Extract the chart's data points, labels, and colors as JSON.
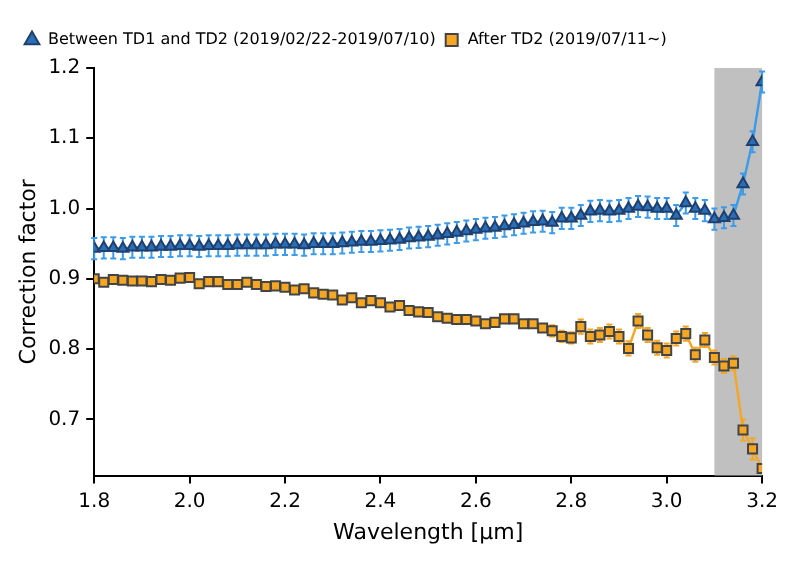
{
  "chart_data": {
    "type": "line",
    "xlabel": "Wavelength [μm]",
    "ylabel": "Correction factor",
    "x": [
      1.8,
      1.82,
      1.84,
      1.86,
      1.88,
      1.9,
      1.92,
      1.94,
      1.96,
      1.98,
      2.0,
      2.02,
      2.04,
      2.06,
      2.08,
      2.1,
      2.12,
      2.14,
      2.16,
      2.18,
      2.2,
      2.22,
      2.24,
      2.26,
      2.28,
      2.3,
      2.32,
      2.34,
      2.36,
      2.38,
      2.4,
      2.42,
      2.44,
      2.46,
      2.48,
      2.5,
      2.52,
      2.54,
      2.56,
      2.58,
      2.6,
      2.62,
      2.64,
      2.66,
      2.68,
      2.7,
      2.72,
      2.74,
      2.76,
      2.78,
      2.8,
      2.82,
      2.84,
      2.86,
      2.88,
      2.9,
      2.92,
      2.94,
      2.96,
      2.98,
      3.0,
      3.02,
      3.04,
      3.06,
      3.08,
      3.1,
      3.12,
      3.14,
      3.16,
      3.18,
      3.2
    ],
    "series": [
      {
        "name": "Between TD1 and TD2 (2019/02/22-2019/07/10)",
        "color": "#3d9be9",
        "marker": "triangle",
        "values": [
          0.943,
          0.944,
          0.944,
          0.943,
          0.945,
          0.945,
          0.945,
          0.946,
          0.946,
          0.947,
          0.947,
          0.946,
          0.947,
          0.947,
          0.947,
          0.948,
          0.948,
          0.948,
          0.948,
          0.949,
          0.949,
          0.949,
          0.948,
          0.95,
          0.95,
          0.95,
          0.951,
          0.952,
          0.953,
          0.953,
          0.954,
          0.955,
          0.956,
          0.958,
          0.959,
          0.96,
          0.962,
          0.964,
          0.966,
          0.968,
          0.97,
          0.972,
          0.973,
          0.975,
          0.977,
          0.979,
          0.981,
          0.982,
          0.98,
          0.986,
          0.986,
          0.99,
          0.996,
          0.997,
          0.996,
          0.997,
          1.0,
          1.003,
          1.002,
          1.0,
          1.0,
          0.99,
          1.008,
          1.0,
          0.997,
          0.985,
          0.987,
          0.99,
          1.035,
          1.095,
          1.18
        ],
        "errors": [
          0.015,
          0.015,
          0.015,
          0.015,
          0.015,
          0.015,
          0.015,
          0.015,
          0.015,
          0.015,
          0.015,
          0.015,
          0.015,
          0.015,
          0.015,
          0.015,
          0.015,
          0.015,
          0.015,
          0.015,
          0.015,
          0.015,
          0.015,
          0.015,
          0.015,
          0.015,
          0.015,
          0.015,
          0.015,
          0.015,
          0.015,
          0.015,
          0.015,
          0.015,
          0.015,
          0.015,
          0.015,
          0.015,
          0.015,
          0.015,
          0.015,
          0.015,
          0.015,
          0.015,
          0.015,
          0.015,
          0.015,
          0.015,
          0.015,
          0.015,
          0.015,
          0.015,
          0.015,
          0.015,
          0.015,
          0.015,
          0.015,
          0.015,
          0.015,
          0.015,
          0.015,
          0.015,
          0.015,
          0.015,
          0.015,
          0.015,
          0.015,
          0.015,
          0.015,
          0.015,
          0.015
        ]
      },
      {
        "name": "After TD2 (2019/07/11~)",
        "color": "#f5a623",
        "marker": "square",
        "values": [
          0.9,
          0.895,
          0.899,
          0.898,
          0.897,
          0.897,
          0.896,
          0.899,
          0.898,
          0.901,
          0.902,
          0.893,
          0.896,
          0.896,
          0.892,
          0.892,
          0.895,
          0.892,
          0.889,
          0.89,
          0.888,
          0.884,
          0.886,
          0.88,
          0.878,
          0.877,
          0.87,
          0.873,
          0.866,
          0.869,
          0.866,
          0.86,
          0.862,
          0.855,
          0.853,
          0.852,
          0.846,
          0.844,
          0.842,
          0.842,
          0.84,
          0.836,
          0.838,
          0.843,
          0.843,
          0.836,
          0.836,
          0.83,
          0.826,
          0.818,
          0.816,
          0.832,
          0.818,
          0.82,
          0.825,
          0.818,
          0.801,
          0.84,
          0.82,
          0.802,
          0.798,
          0.815,
          0.822,
          0.792,
          0.813,
          0.788,
          0.776,
          0.78,
          0.685,
          0.658,
          0.63
        ],
        "errors": [
          null,
          null,
          null,
          null,
          null,
          null,
          null,
          null,
          null,
          null,
          null,
          null,
          null,
          null,
          null,
          null,
          null,
          null,
          null,
          null,
          null,
          null,
          null,
          null,
          null,
          null,
          null,
          null,
          null,
          null,
          null,
          null,
          null,
          null,
          null,
          null,
          null,
          null,
          null,
          null,
          null,
          null,
          null,
          null,
          null,
          null,
          null,
          null,
          0.008,
          0.008,
          0.008,
          0.01,
          0.01,
          0.01,
          0.01,
          0.01,
          0.01,
          0.01,
          0.01,
          0.01,
          0.01,
          0.01,
          0.01,
          0.01,
          0.01,
          0.01,
          0.01,
          0.01,
          0.015,
          0.015,
          null
        ]
      }
    ],
    "xlim": [
      1.8,
      3.2
    ],
    "xticks": [
      1.8,
      {
        "value": 2,
        "label": "2.0"
      },
      2.2,
      2.4,
      2.6,
      2.8,
      {
        "value": 3,
        "label": "3.0"
      },
      3.2
    ],
    "ylim": [
      0.62,
      1.2
    ],
    "yticks": [
      0.7,
      0.8,
      0.9,
      {
        "value": 1,
        "label": "1.0"
      },
      1.1,
      1.2
    ],
    "bands": [
      {
        "axis": "x",
        "from": 3.1,
        "to": 3.2,
        "color": "#c0c0c0"
      }
    ],
    "legend": "top left",
    "grid": false
  }
}
